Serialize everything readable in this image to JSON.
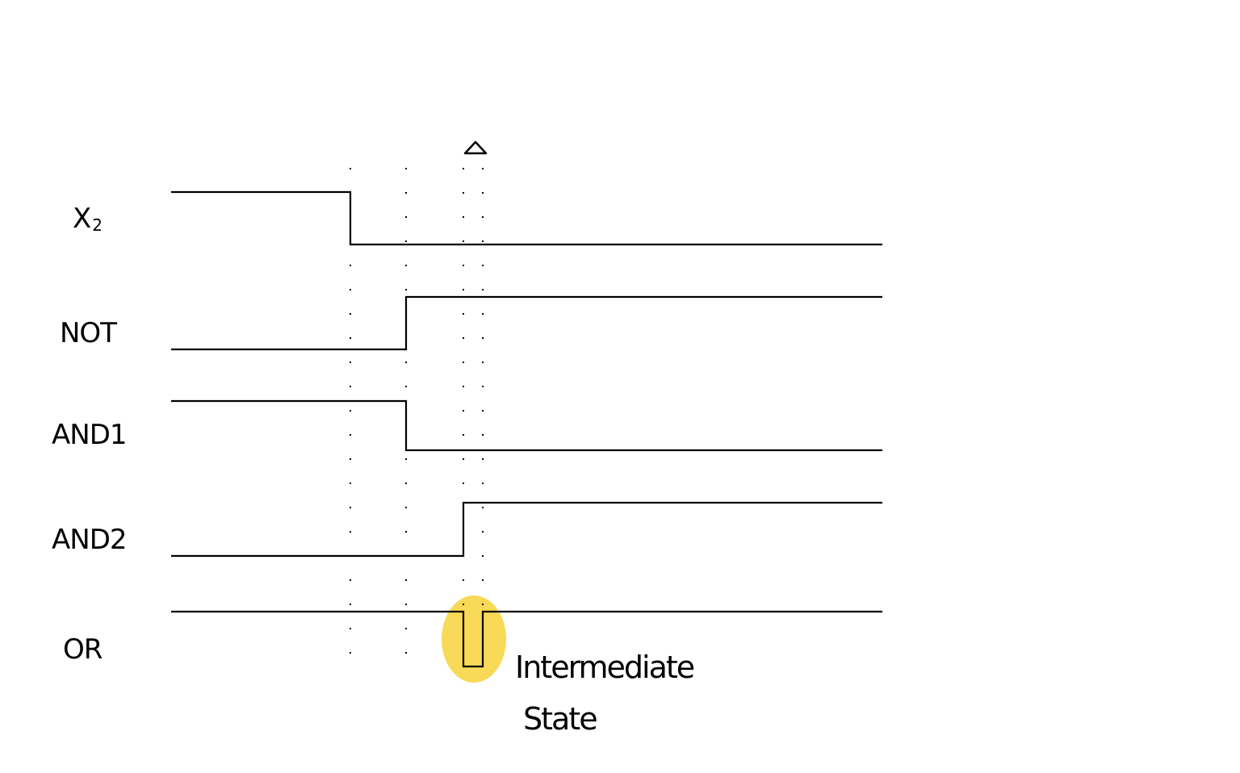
{
  "signals": [
    {
      "id": "x2",
      "name": "X",
      "subscript": "2"
    },
    {
      "id": "not",
      "name": "NOT",
      "subscript": ""
    },
    {
      "id": "and1",
      "name": "AND1",
      "subscript": ""
    },
    {
      "id": "and2",
      "name": "AND2",
      "subscript": ""
    },
    {
      "id": "or",
      "name": "OR",
      "subscript": ""
    }
  ],
  "annotation": {
    "line1": "Intermediate",
    "line2": "State",
    "highlight_color": "#F7D23B"
  },
  "marker_icon": "delta-triangle-icon"
}
